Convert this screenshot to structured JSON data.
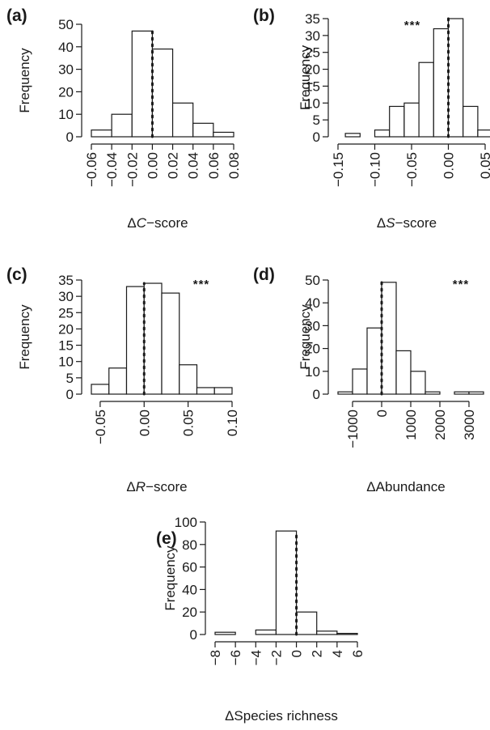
{
  "chart_data": [
    {
      "id": "a",
      "type": "bar",
      "panel_label": "(a)",
      "ylabel": "Frequency",
      "xlabel_prefix": "Δ",
      "xlabel_italic": "C",
      "xlabel_suffix": "−score",
      "bin_edges": [
        -0.06,
        -0.04,
        -0.02,
        0.0,
        0.02,
        0.04,
        0.06,
        0.08
      ],
      "values": [
        3,
        10,
        47,
        39,
        15,
        6,
        2
      ],
      "xlim": [
        -0.06,
        0.08
      ],
      "ylim": [
        0,
        50
      ],
      "xticks": [
        -0.06,
        -0.04,
        -0.02,
        0.0,
        0.02,
        0.04,
        0.06,
        0.08
      ],
      "xtick_labels": [
        "−0.06",
        "−0.04",
        "−0.02",
        "0.00",
        "0.02",
        "0.04",
        "0.06",
        "0.08"
      ],
      "yticks": [
        0,
        10,
        20,
        30,
        40,
        50
      ],
      "ytick_labels": [
        "0",
        "10",
        "20",
        "30",
        "40",
        "50"
      ],
      "reference_line_x": 0,
      "annotation": ""
    },
    {
      "id": "b",
      "type": "bar",
      "panel_label": "(b)",
      "ylabel": "Frequency",
      "xlabel_prefix": "Δ",
      "xlabel_italic": "S",
      "xlabel_suffix": "−score",
      "bin_edges": [
        -0.14,
        -0.12,
        -0.1,
        -0.08,
        -0.06,
        -0.04,
        -0.02,
        0.0,
        0.02,
        0.04,
        0.06
      ],
      "values": [
        1,
        0,
        2,
        9,
        10,
        22,
        32,
        35,
        9,
        2
      ],
      "xlim": [
        -0.15,
        0.05
      ],
      "ylim": [
        0,
        35
      ],
      "xticks": [
        -0.15,
        -0.1,
        -0.05,
        0.0,
        0.05
      ],
      "xtick_labels": [
        "−0.15",
        "−0.10",
        "−0.05",
        "0.00",
        "0.05"
      ],
      "yticks": [
        0,
        5,
        10,
        15,
        20,
        25,
        30,
        35
      ],
      "ytick_labels": [
        "0",
        "5",
        "10",
        "15",
        "20",
        "25",
        "30",
        "35"
      ],
      "reference_line_x": 0,
      "annotation": "***"
    },
    {
      "id": "c",
      "type": "bar",
      "panel_label": "(c)",
      "ylabel": "Frequency",
      "xlabel_prefix": "Δ",
      "xlabel_italic": "R",
      "xlabel_suffix": "−score",
      "bin_edges": [
        -0.06,
        -0.04,
        -0.02,
        0.0,
        0.02,
        0.04,
        0.06,
        0.08,
        0.1
      ],
      "values": [
        3,
        8,
        33,
        34,
        31,
        9,
        2,
        2
      ],
      "xlim": [
        -0.06,
        0.1
      ],
      "ylim": [
        0,
        35
      ],
      "xticks": [
        -0.05,
        0.0,
        0.05,
        0.1
      ],
      "xtick_labels": [
        "−0.05",
        "0.00",
        "0.05",
        "0.10"
      ],
      "yticks": [
        0,
        5,
        10,
        15,
        20,
        25,
        30,
        35
      ],
      "ytick_labels": [
        "0",
        "5",
        "10",
        "15",
        "20",
        "25",
        "30",
        "35"
      ],
      "reference_line_x": 0,
      "annotation": "***"
    },
    {
      "id": "d",
      "type": "bar",
      "panel_label": "(d)",
      "ylabel": "Frequency",
      "xlabel_prefix": "Δ",
      "xlabel_italic": "",
      "xlabel_suffix": "Abundance",
      "bin_edges": [
        -1500,
        -1000,
        -500,
        0,
        500,
        1000,
        1500,
        2000,
        2500,
        3000,
        3500
      ],
      "values": [
        1,
        11,
        29,
        49,
        19,
        10,
        1,
        0,
        1,
        1
      ],
      "xlim": [
        -1500,
        3500
      ],
      "ylim": [
        0,
        50
      ],
      "xticks": [
        -1000,
        0,
        1000,
        2000,
        3000
      ],
      "xtick_labels": [
        "−1000",
        "0",
        "1000",
        "2000",
        "3000"
      ],
      "yticks": [
        0,
        10,
        20,
        30,
        40,
        50
      ],
      "ytick_labels": [
        "0",
        "10",
        "20",
        "30",
        "40",
        "50"
      ],
      "reference_line_x": 0,
      "annotation": "***"
    },
    {
      "id": "e",
      "type": "bar",
      "panel_label": "(e)",
      "ylabel": "Frequency",
      "xlabel_prefix": "Δ",
      "xlabel_italic": "",
      "xlabel_suffix": "Species richness",
      "bin_edges": [
        -8,
        -6,
        -4,
        -2,
        0,
        2,
        4,
        6
      ],
      "values": [
        2,
        0,
        4,
        92,
        20,
        3,
        1
      ],
      "xlim": [
        -8,
        6
      ],
      "ylim": [
        0,
        100
      ],
      "xticks": [
        -8,
        -6,
        -4,
        -2,
        0,
        2,
        4,
        6
      ],
      "xtick_labels": [
        "−8",
        "−6",
        "−4",
        "−2",
        "0",
        "2",
        "4",
        "6"
      ],
      "yticks": [
        0,
        20,
        40,
        60,
        80,
        100
      ],
      "ytick_labels": [
        "0",
        "20",
        "40",
        "60",
        "80",
        "100"
      ],
      "reference_line_x": 0,
      "annotation": ""
    }
  ]
}
